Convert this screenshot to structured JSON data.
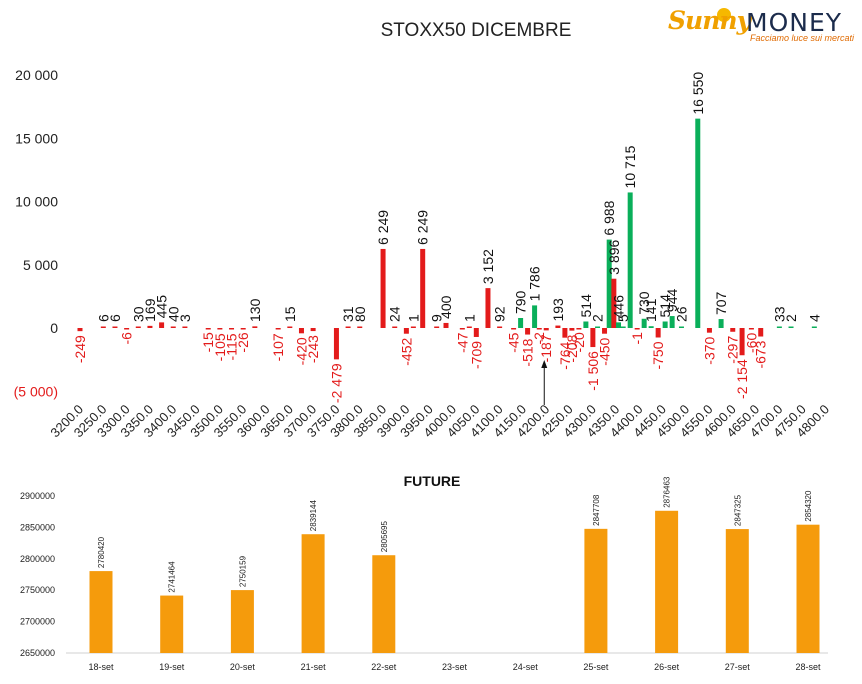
{
  "chart_data": [
    {
      "type": "bar",
      "title": "STOXX50 DICEMBRE",
      "yticks": [
        "20 000",
        "15 000",
        "10 000",
        "5 000",
        "0",
        "(5 000)"
      ],
      "ylim": [
        -5000,
        20000
      ],
      "xlabel": "",
      "ylabel": "",
      "grid": false,
      "legend": "none",
      "colors": {
        "positive": "#0aaf5a",
        "negative": "#e31b1b",
        "positive_put": "#e31b1b"
      },
      "categories": [
        "3200.0",
        "3250.0",
        "3300.0",
        "3350.0",
        "3400.0",
        "3450.0",
        "3500.0",
        "3550.0",
        "3600.0",
        "3650.0",
        "3700.0",
        "3750.0",
        "3800.0",
        "3850.0",
        "3900.0",
        "3950.0",
        "4000.0",
        "4050.0",
        "4100.0",
        "4150.0",
        "4200.0",
        "4250.0",
        "4300.0",
        "4350.0",
        "4400.0",
        "4450.0",
        "4500.0",
        "4550.0",
        "4600.0",
        "4650.0",
        "4700.0",
        "4750.0",
        "4800.0"
      ],
      "bars": [
        {
          "strike": 3200,
          "series": "call",
          "value": -249,
          "label": "-249"
        },
        {
          "strike": 3250,
          "series": "call",
          "value": 6,
          "label": "6"
        },
        {
          "strike": 3275,
          "series": "call",
          "value": 6,
          "label": "6"
        },
        {
          "strike": 3300,
          "series": "call",
          "value": -6,
          "label": "-6"
        },
        {
          "strike": 3325,
          "series": "call",
          "value": 30,
          "label": "30"
        },
        {
          "strike": 3350,
          "series": "call",
          "value": 169,
          "label": "169"
        },
        {
          "strike": 3375,
          "series": "call",
          "value": 445,
          "label": "445"
        },
        {
          "strike": 3400,
          "series": "call",
          "value": 40,
          "label": "40"
        },
        {
          "strike": 3425,
          "series": "call",
          "value": 3,
          "label": "3"
        },
        {
          "strike": 3475,
          "series": "call",
          "value": -15,
          "label": "-15"
        },
        {
          "strike": 3500,
          "series": "call",
          "value": -105,
          "label": "-105"
        },
        {
          "strike": 3525,
          "series": "call",
          "value": -115,
          "label": "-115"
        },
        {
          "strike": 3550,
          "series": "call",
          "value": -26,
          "label": "-26"
        },
        {
          "strike": 3575,
          "series": "call",
          "value": 130,
          "label": "130"
        },
        {
          "strike": 3625,
          "series": "call",
          "value": -107,
          "label": "-107"
        },
        {
          "strike": 3650,
          "series": "call",
          "value": 15,
          "label": "15"
        },
        {
          "strike": 3675,
          "series": "call",
          "value": -420,
          "label": "-420"
        },
        {
          "strike": 3700,
          "series": "call",
          "value": -243,
          "label": "-243"
        },
        {
          "strike": 3750,
          "series": "call",
          "value": -2479,
          "label": "-2 479"
        },
        {
          "strike": 3775,
          "series": "call",
          "value": 31,
          "label": "31"
        },
        {
          "strike": 3800,
          "series": "call",
          "value": 80,
          "label": "80"
        },
        {
          "strike": 3850,
          "series": "call",
          "value": 6249,
          "label": "6 249"
        },
        {
          "strike": 3875,
          "series": "call",
          "value": 24,
          "label": "24"
        },
        {
          "strike": 3900,
          "series": "call",
          "value": -452,
          "label": "-452"
        },
        {
          "strike": 3915,
          "series": "call",
          "value": 1,
          "label": "1"
        },
        {
          "strike": 3935,
          "series": "call",
          "value": 6249,
          "label": "6 249"
        },
        {
          "strike": 3965,
          "series": "call",
          "value": 9,
          "label": "9"
        },
        {
          "strike": 3985,
          "series": "call",
          "value": 400,
          "label": "400"
        },
        {
          "strike": 4020,
          "series": "call",
          "value": -47,
          "label": "-47"
        },
        {
          "strike": 4035,
          "series": "call",
          "value": 1,
          "label": "1"
        },
        {
          "strike": 4050,
          "series": "call",
          "value": -709,
          "label": "-709"
        },
        {
          "strike": 4075,
          "series": "call",
          "value": 3152,
          "label": "3 152"
        },
        {
          "strike": 4100,
          "series": "call",
          "value": 92,
          "label": "92"
        },
        {
          "strike": 4130,
          "series": "call",
          "value": -45,
          "label": "-45"
        },
        {
          "strike": 4145,
          "series": "put",
          "value": 790,
          "label": "790"
        },
        {
          "strike": 4160,
          "series": "call",
          "value": -518,
          "label": "-518"
        },
        {
          "strike": 4175,
          "series": "put",
          "value": 1786,
          "label": "1 786"
        },
        {
          "strike": 4185,
          "series": "call",
          "value": -2,
          "label": "-2"
        },
        {
          "strike": 4200,
          "series": "call",
          "value": -187,
          "label": "-187"
        },
        {
          "strike": 4225,
          "series": "call",
          "value": 193,
          "label": "193"
        },
        {
          "strike": 4240,
          "series": "put",
          "value": -764,
          "label": "-764"
        },
        {
          "strike": 4255,
          "series": "call",
          "value": -208,
          "label": "-208"
        },
        {
          "strike": 4270,
          "series": "call",
          "value": -20,
          "label": "-20"
        },
        {
          "strike": 4285,
          "series": "put",
          "value": 514,
          "label": "514"
        },
        {
          "strike": 4300,
          "series": "call",
          "value": -1506,
          "label": "-1 506"
        },
        {
          "strike": 4310,
          "series": "put",
          "value": 2,
          "label": "2"
        },
        {
          "strike": 4325,
          "series": "call",
          "value": -450,
          "label": "-450"
        },
        {
          "strike": 4335,
          "series": "put",
          "value": 6988,
          "label": "6 988"
        },
        {
          "strike": 4345,
          "series": "call",
          "value": 3896,
          "label": "3 896"
        },
        {
          "strike": 4355,
          "series": "put",
          "value": 446,
          "label": "446"
        },
        {
          "strike": 4365,
          "series": "put",
          "value": 5,
          "label": "5"
        },
        {
          "strike": 4380,
          "series": "put",
          "value": 10715,
          "label": "10 715"
        },
        {
          "strike": 4395,
          "series": "call",
          "value": -1,
          "label": "-1"
        },
        {
          "strike": 4410,
          "series": "put",
          "value": 730,
          "label": "730"
        },
        {
          "strike": 4425,
          "series": "put",
          "value": 141,
          "label": "141"
        },
        {
          "strike": 4440,
          "series": "call",
          "value": -750,
          "label": "-750"
        },
        {
          "strike": 4455,
          "series": "put",
          "value": 514,
          "label": "514"
        },
        {
          "strike": 4470,
          "series": "put",
          "value": 944,
          "label": "944"
        },
        {
          "strike": 4490,
          "series": "put",
          "value": 26,
          "label": "26"
        },
        {
          "strike": 4525,
          "series": "put",
          "value": 16550,
          "label": "16 550"
        },
        {
          "strike": 4550,
          "series": "call",
          "value": -370,
          "label": "-370"
        },
        {
          "strike": 4575,
          "series": "put",
          "value": 707,
          "label": "707"
        },
        {
          "strike": 4600,
          "series": "put",
          "value": -297,
          "label": "-297"
        },
        {
          "strike": 4620,
          "series": "put",
          "value": -2154,
          "label": "-2 154"
        },
        {
          "strike": 4640,
          "series": "call",
          "value": -60,
          "label": "-60"
        },
        {
          "strike": 4660,
          "series": "put",
          "value": -673,
          "label": "-673"
        },
        {
          "strike": 4700,
          "series": "put",
          "value": 33,
          "label": "33"
        },
        {
          "strike": 4725,
          "series": "put",
          "value": 2,
          "label": "2"
        },
        {
          "strike": 4775,
          "series": "put",
          "value": 4,
          "label": "4"
        }
      ],
      "annotations": [
        {
          "type": "arrow",
          "at_strike": 4200,
          "direction": "up"
        }
      ]
    },
    {
      "type": "bar",
      "title": "FUTURE",
      "categories": [
        "18-set",
        "19-set",
        "20-set",
        "21-set",
        "22-set",
        "23-set",
        "24-set",
        "25-set",
        "26-set",
        "27-set",
        "28-set"
      ],
      "values": [
        2780420,
        2741464,
        2750159,
        2839144,
        2805695,
        null,
        null,
        2847708,
        2876463,
        2847325,
        2854320
      ],
      "labels": [
        "2780420",
        "2741464",
        "2750159",
        "2839144",
        "2805695",
        "",
        "",
        "2847708",
        "2876463",
        "2847325",
        "2854320"
      ],
      "yticks": [
        "2900000",
        "2850000",
        "2800000",
        "2750000",
        "2700000",
        "2650000"
      ],
      "ylim": [
        2650000,
        2900000
      ],
      "color": "#f59b0c",
      "grid": false,
      "legend": "none"
    }
  ],
  "logo": {
    "brand_left": "Sunny",
    "brand_right": "MONEY",
    "tagline": "Facciamo luce sui mercati"
  }
}
